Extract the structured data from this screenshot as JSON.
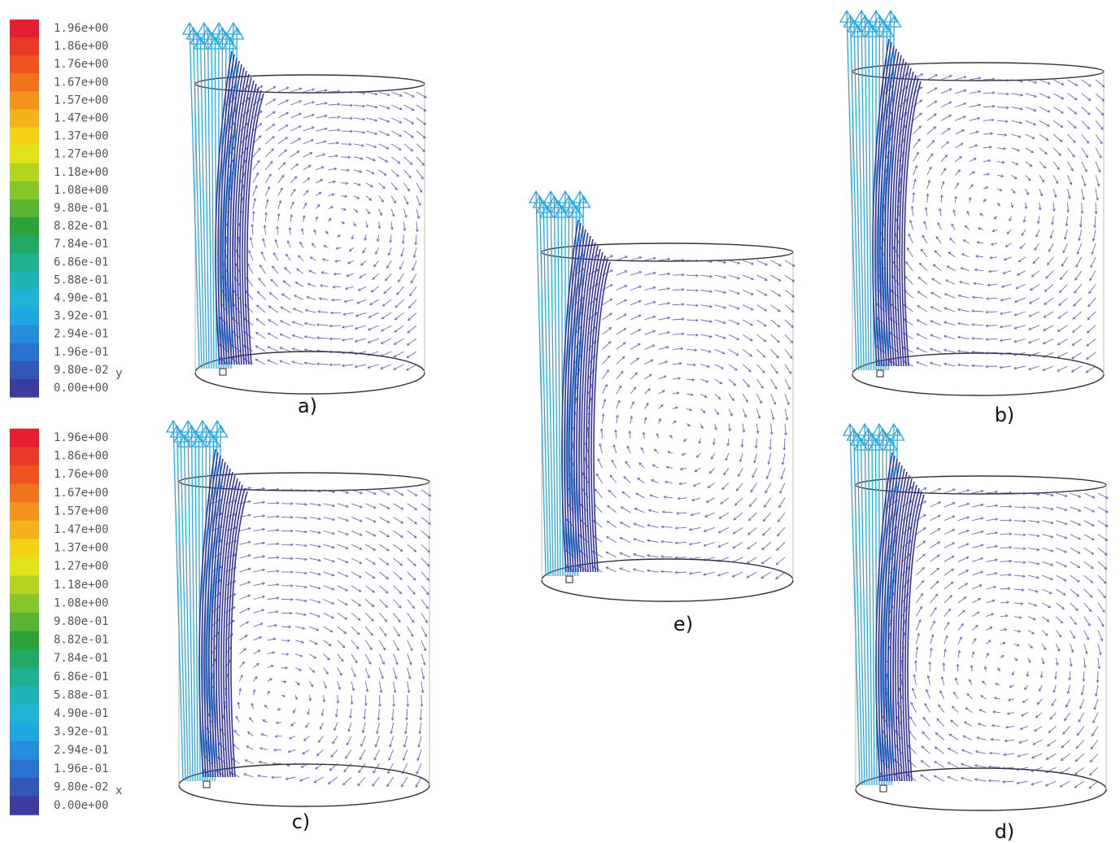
{
  "colorbars": [
    {
      "labels": [
        "1.96e+00",
        "1.86e+00",
        "1.76e+00",
        "1.67e+00",
        "1.57e+00",
        "1.47e+00",
        "1.37e+00",
        "1.27e+00",
        "1.18e+00",
        "1.08e+00",
        "9.80e-01",
        "8.82e-01",
        "7.84e-01",
        "6.86e-01",
        "5.88e-01",
        "4.90e-01",
        "3.92e-01",
        "2.94e-01",
        "1.96e-01",
        "9.80e-02",
        "0.00e+00"
      ],
      "axis_letter": "y"
    },
    {
      "labels": [
        "1.96e+00",
        "1.86e+00",
        "1.76e+00",
        "1.67e+00",
        "1.57e+00",
        "1.47e+00",
        "1.37e+00",
        "1.27e+00",
        "1.18e+00",
        "1.08e+00",
        "9.80e-01",
        "8.82e-01",
        "7.84e-01",
        "6.86e-01",
        "5.88e-01",
        "4.90e-01",
        "3.92e-01",
        "2.94e-01",
        "1.96e-01",
        "9.80e-02",
        "0.00e+00"
      ],
      "axis_letter": "x"
    }
  ],
  "panels": [
    {
      "label": "a)"
    },
    {
      "label": "b)"
    },
    {
      "label": "c)"
    },
    {
      "label": "d)"
    },
    {
      "label": "e)"
    }
  ]
}
